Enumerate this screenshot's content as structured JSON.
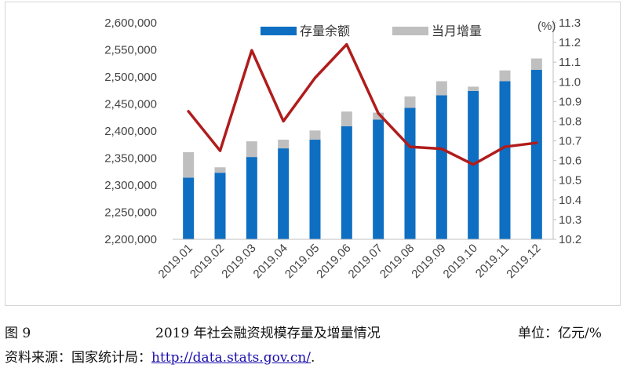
{
  "chart_data": {
    "type": "bar+line",
    "categories": [
      "2019.01",
      "2019.02",
      "2019.03",
      "2019.04",
      "2019.05",
      "2019.06",
      "2019.07",
      "2019.08",
      "2019.09",
      "2019.10",
      "2019.11",
      "2019.12"
    ],
    "series": [
      {
        "name": "存量余额",
        "type": "bar",
        "axis": "left",
        "color": "#0e6ec2",
        "values": [
          2314000,
          2323000,
          2352000,
          2368000,
          2384000,
          2409000,
          2421000,
          2443000,
          2466000,
          2474000,
          2492000,
          2513000
        ]
      },
      {
        "name": "当月增量",
        "type": "bar-stack",
        "axis": "left",
        "color": "#bfbfbf",
        "values": [
          47000,
          10000,
          29000,
          16000,
          17000,
          27000,
          13000,
          21000,
          26000,
          8000,
          20000,
          21000
        ]
      },
      {
        "name": "",
        "type": "line",
        "axis": "right",
        "color": "#b01c1c",
        "values": [
          10.85,
          10.65,
          11.16,
          10.8,
          11.02,
          11.19,
          10.84,
          10.67,
          10.66,
          10.58,
          10.67,
          10.69
        ]
      }
    ],
    "y_left": {
      "min": 2200000,
      "max": 2600000,
      "step": 50000,
      "ticks": [
        "2,200,000",
        "2,250,000",
        "2,300,000",
        "2,350,000",
        "2,400,000",
        "2,450,000",
        "2,500,000",
        "2,550,000",
        "2,600,000"
      ]
    },
    "y_right": {
      "min": 10.2,
      "max": 11.3,
      "step": 0.1,
      "label": "(%)",
      "ticks": [
        "10.2",
        "10.3",
        "10.4",
        "10.5",
        "10.6",
        "10.7",
        "10.8",
        "10.9",
        "11.0",
        "11.1",
        "11.2",
        "11.3"
      ]
    },
    "grid": false,
    "legend": "top"
  },
  "caption": {
    "figure_no": "图 9",
    "title": "2019 年社会融资规模存量及增量情况",
    "unit": "单位：亿元/%"
  },
  "source": {
    "prefix": "资料来源：国家统计局：",
    "link_text": "http://data.stats.gov.cn/",
    "suffix": "."
  }
}
